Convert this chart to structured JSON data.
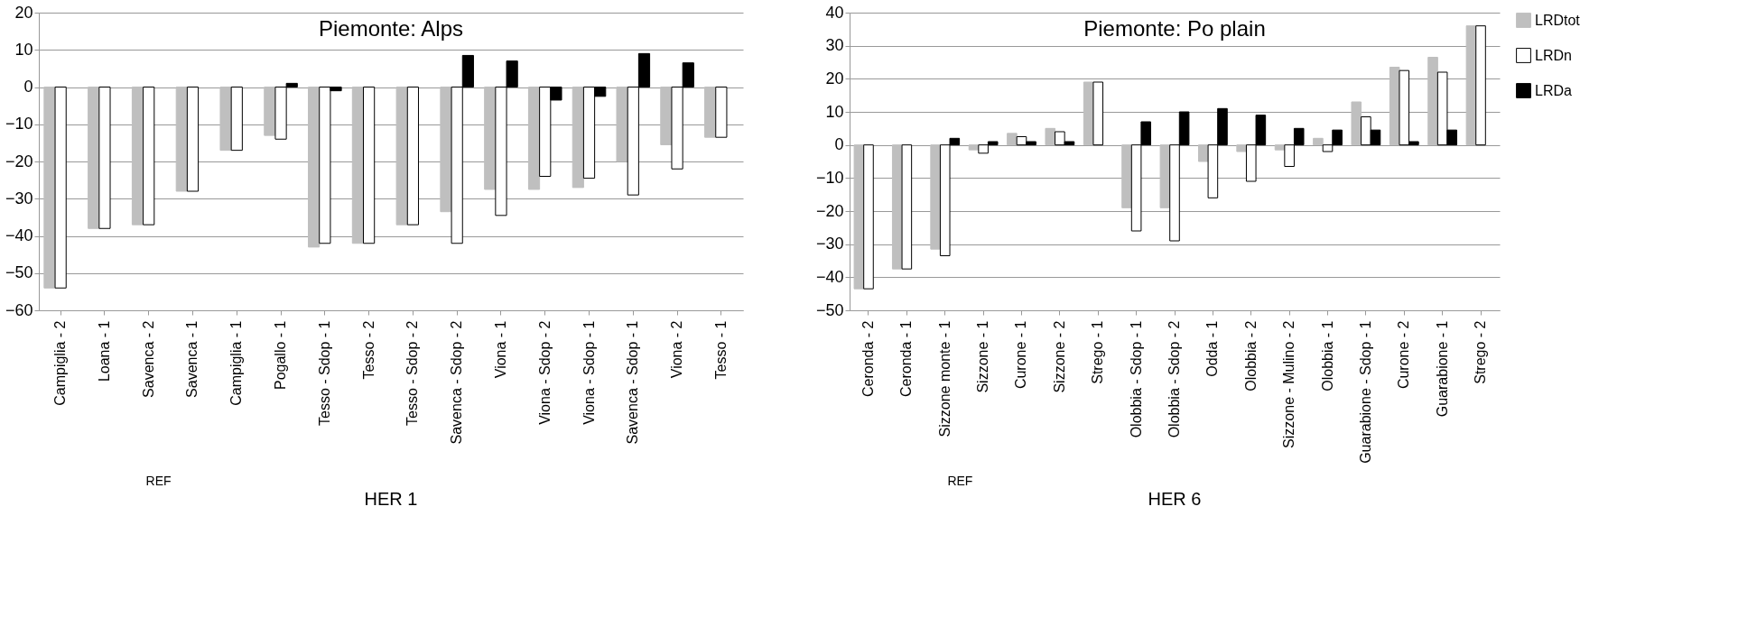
{
  "chart_data": [
    {
      "type": "bar",
      "title": "Piemonte: Alps",
      "categories": [
        "Campiglia - 2",
        "Loana - 1",
        "Savenca - 2",
        "Savenca - 1",
        "Campiglia - 1",
        "Pogallo - 1",
        "Tesso - Sdop - 1",
        "Tesso - 2",
        "Tesso - Sdop - 2",
        "Savenca - Sdop - 2",
        "Viona - 1",
        "Viona - Sdop - 2",
        "Viona - Sdop - 1",
        "Savenca - Sdop - 1",
        "Viona - 2",
        "Tesso - 1"
      ],
      "series": [
        {
          "color": "#bfbfbf",
          "values": [
            -54,
            -38,
            -37,
            -28,
            -17,
            -13,
            -43,
            -42,
            -37,
            -33.5,
            -27.5,
            -27.5,
            -27,
            -20,
            -15.5,
            -13.5
          ]
        },
        {
          "color": "#ffffff",
          "values": [
            -54,
            -38,
            -37,
            -28,
            -17,
            -14,
            -42,
            -42,
            -37,
            -42,
            -34.5,
            -24,
            -24.5,
            -29,
            -22,
            -13.5
          ]
        },
        {
          "color": "#000000",
          "values": [
            null,
            null,
            null,
            null,
            null,
            1,
            -1,
            null,
            null,
            8.5,
            7,
            -3.5,
            -2.5,
            9,
            6.5,
            null
          ]
        }
      ],
      "ylim": [
        -60,
        20
      ],
      "yticks": [
        -60,
        -50,
        -40,
        -30,
        -20,
        -10,
        0,
        10,
        20
      ],
      "grid": "y",
      "legend": false,
      "annotations": [
        "REF",
        "HER 1"
      ]
    },
    {
      "type": "bar",
      "title": "Piemonte: Po plain",
      "categories": [
        "Ceronda - 2",
        "Ceronda - 1",
        "Sizzone monte - 1",
        "Sizzone - 1",
        "Curone - 1",
        "Sizzone - 2",
        "Strego - 1",
        "Olobbia - Sdop - 1",
        "Olobbia - Sdop - 2",
        "Odda - 1",
        "Olobbia - 2",
        "Sizzone - Mulino - 2",
        "Olobbia - 1",
        "Guarabione - Sdop - 1",
        "Curone - 2",
        "Guarabione - 1",
        "Strego - 2"
      ],
      "series": [
        {
          "name": "LRDtot",
          "color": "#bfbfbf",
          "values": [
            -43.5,
            -37.5,
            -31.5,
            -1.5,
            3.5,
            5,
            19,
            -19,
            -19,
            -5,
            -2,
            -1.5,
            2,
            13,
            23.5,
            26.5,
            36
          ]
        },
        {
          "name": "LRDn",
          "color": "#ffffff",
          "values": [
            -43.5,
            -37.5,
            -33.5,
            -2.5,
            2.5,
            4,
            19,
            -26,
            -29,
            -16,
            -11,
            -6.5,
            -2,
            8.5,
            22.5,
            22,
            36
          ]
        },
        {
          "name": "LRDa",
          "color": "#000000",
          "values": [
            null,
            null,
            2,
            1,
            1,
            1,
            null,
            7,
            10,
            11,
            9,
            5,
            4.5,
            4.5,
            1,
            4.5,
            null
          ]
        }
      ],
      "ylim": [
        -50,
        40
      ],
      "yticks": [
        -50,
        -40,
        -30,
        -20,
        -10,
        0,
        10,
        20,
        30,
        40
      ],
      "grid": "y",
      "legend": "right",
      "annotations": [
        "REF",
        "HER 6"
      ]
    }
  ]
}
